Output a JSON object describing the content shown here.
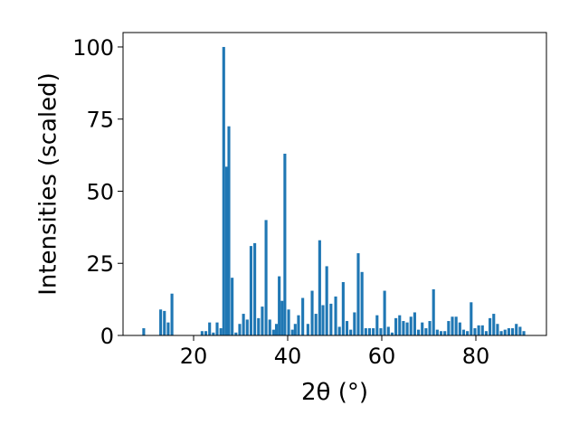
{
  "chart_data": {
    "type": "bar",
    "title": "",
    "xlabel": "2θ (°)",
    "ylabel": "Intensities (scaled)",
    "xlim": [
      5,
      95
    ],
    "ylim": [
      0,
      105
    ],
    "xticks": [
      20,
      40,
      60,
      80
    ],
    "yticks": [
      0,
      25,
      50,
      75,
      100
    ],
    "grid": false,
    "bar_width": 0.6,
    "colors": {
      "bars": "#1f77b4",
      "axes": "#000000",
      "background": "#ffffff"
    },
    "series": [
      {
        "x": [
          9.4,
          13.0,
          13.8,
          14.6,
          15.4,
          21.8,
          22.6,
          23.4,
          24.2,
          25.0,
          25.8,
          26.4,
          27.0,
          27.5,
          28.2,
          29.0,
          29.8,
          30.6,
          31.4,
          32.2,
          33.0,
          33.8,
          34.6,
          35.4,
          36.2,
          37.0,
          37.6,
          38.2,
          38.8,
          39.4,
          40.2,
          41.0,
          41.6,
          42.3,
          43.2,
          44.3,
          45.2,
          46.0,
          46.8,
          47.5,
          48.3,
          49.2,
          50.2,
          51.0,
          51.8,
          52.6,
          53.4,
          54.2,
          55.0,
          55.8,
          56.6,
          57.4,
          58.2,
          59.0,
          59.8,
          60.6,
          61.4,
          62.2,
          63.0,
          63.8,
          64.6,
          65.4,
          66.2,
          67.0,
          67.8,
          68.6,
          69.4,
          70.2,
          71.0,
          71.8,
          72.6,
          73.4,
          74.2,
          75.0,
          75.8,
          76.6,
          77.4,
          78.2,
          79.0,
          79.8,
          80.6,
          81.4,
          82.2,
          83.0,
          83.8,
          84.6,
          85.4,
          86.2,
          87.0,
          87.8,
          88.6,
          89.4,
          90.2
        ],
        "values": [
          2.5,
          9,
          8.5,
          4.5,
          14.5,
          1.5,
          1.5,
          4.5,
          1,
          4.5,
          2.5,
          100,
          58.5,
          72.5,
          20,
          1,
          4,
          7.5,
          5.5,
          31,
          32,
          6,
          10,
          40,
          5.5,
          2,
          4,
          20.5,
          12,
          63,
          9,
          2,
          4,
          7,
          13,
          4,
          15.5,
          7.5,
          33,
          10.5,
          24,
          11,
          13.5,
          3,
          18.5,
          5,
          2,
          8,
          28.5,
          22,
          2.5,
          2.5,
          2.5,
          7,
          2.5,
          15.5,
          3,
          1,
          6,
          7,
          5,
          4.5,
          6.5,
          8,
          2,
          4.5,
          2.5,
          5,
          16,
          2,
          1.5,
          1.5,
          5,
          6.5,
          6.5,
          4.5,
          2,
          1.5,
          11.5,
          2.5,
          3.5,
          3.5,
          1.5,
          6,
          7.5,
          4,
          1.5,
          2,
          2.5,
          2.5,
          4,
          3,
          1.5
        ]
      }
    ]
  }
}
